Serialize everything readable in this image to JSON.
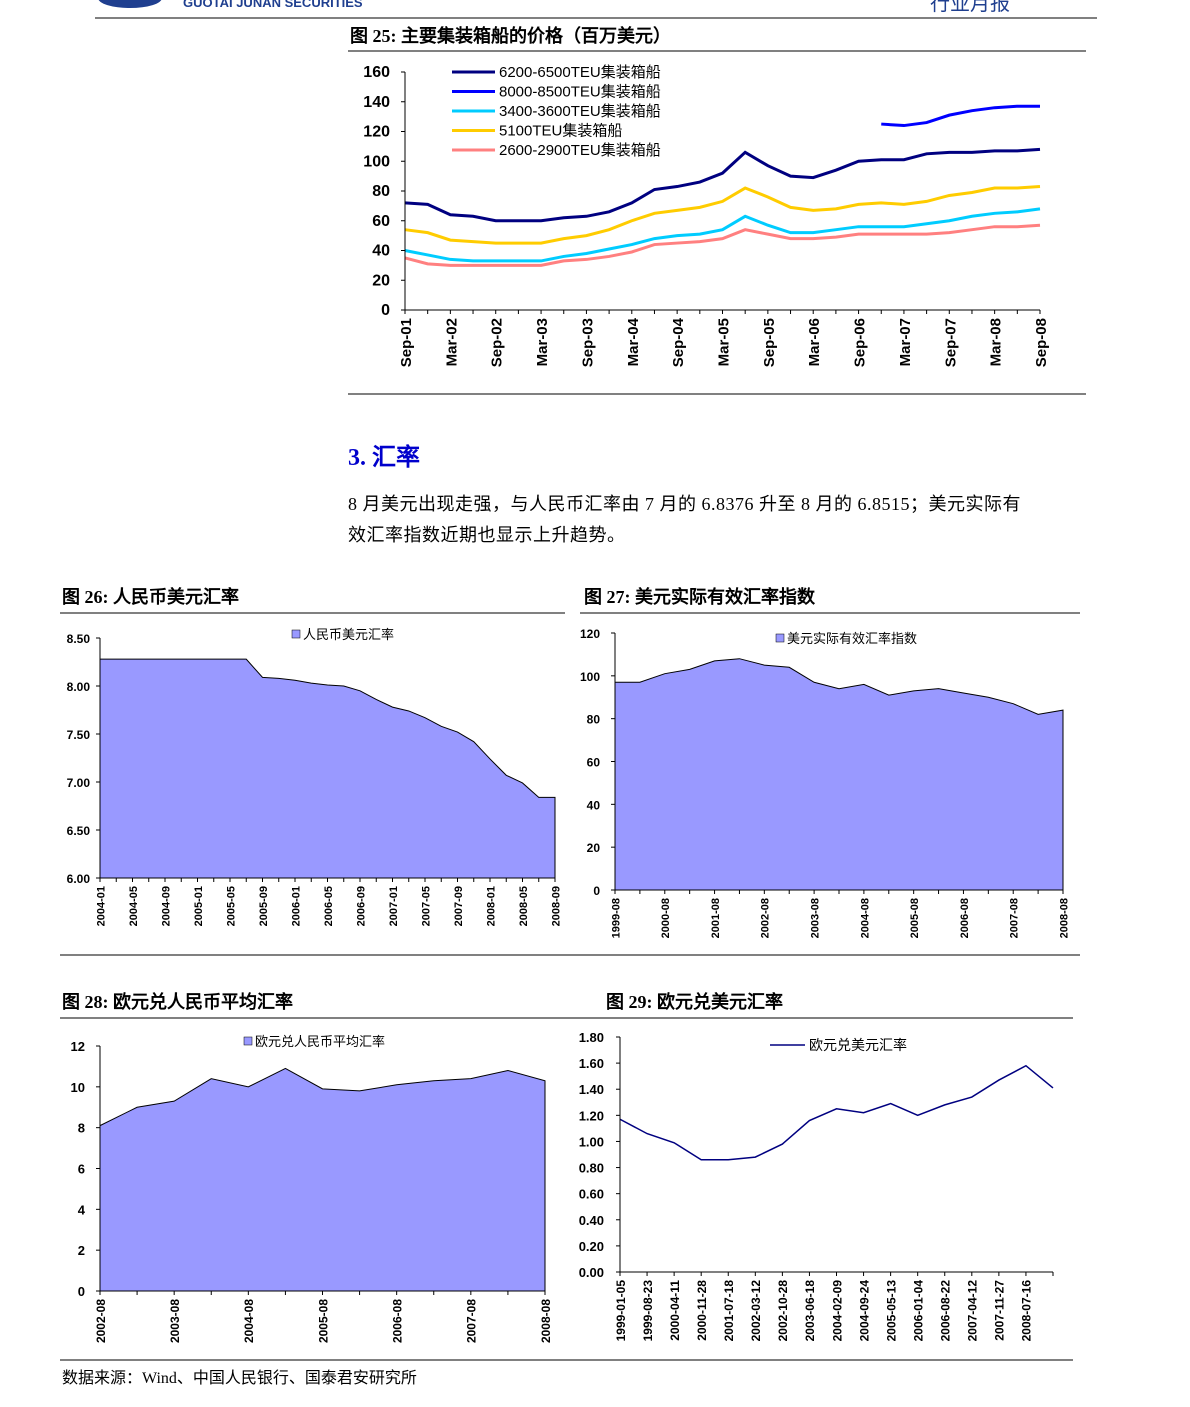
{
  "header": {
    "company": "GUOTAI JUNAN SECURITIES",
    "report": "行业月报"
  },
  "section": {
    "heading": "3.  汇率",
    "paragraph": [
      "8 月美元出现走强，与人民币汇率由 7 月的 6.8376 升至 8 月的 6.8515；美元实际有",
      "效汇率指数近期也显示上升趋势。"
    ]
  },
  "source": "数据来源：Wind、中国人民银行、国泰君安研究所",
  "chart_data": [
    {
      "type": "line",
      "title": "图 25:  主要集装箱船的价格（百万美元）",
      "categories": [
        "Sep-01",
        null,
        "Mar-02",
        null,
        "Sep-02",
        null,
        "Mar-03",
        null,
        "Sep-03",
        null,
        "Mar-04",
        null,
        "Sep-04",
        null,
        "Mar-05",
        null,
        "Sep-05",
        null,
        "Mar-06",
        null,
        "Sep-06",
        null,
        "Mar-07",
        null,
        "Sep-07",
        null,
        "Mar-08",
        null,
        "Sep-08"
      ],
      "ylim": [
        0,
        160
      ],
      "yticks": [
        0,
        20,
        40,
        60,
        80,
        100,
        120,
        140,
        160
      ],
      "series": [
        {
          "name": "6200-6500TEU集装箱船",
          "color": "#000080",
          "values": [
            72,
            71,
            64,
            63,
            60,
            60,
            60,
            62,
            63,
            66,
            72,
            81,
            83,
            86,
            92,
            106,
            97,
            90,
            89,
            94,
            100,
            101,
            101,
            105,
            106,
            106,
            107,
            107,
            108
          ]
        },
        {
          "name": "8000-8500TEU集装箱船",
          "color": "#0000ff",
          "values": [
            null,
            null,
            null,
            null,
            null,
            null,
            null,
            null,
            null,
            null,
            null,
            null,
            null,
            null,
            null,
            null,
            null,
            null,
            null,
            null,
            null,
            125,
            124,
            126,
            131,
            134,
            136,
            137,
            137
          ]
        },
        {
          "name": "3400-3600TEU集装箱船",
          "color": "#00ccff",
          "values": [
            40,
            37,
            34,
            33,
            33,
            33,
            33,
            36,
            38,
            41,
            44,
            48,
            50,
            51,
            54,
            63,
            57,
            52,
            52,
            54,
            56,
            56,
            56,
            58,
            60,
            63,
            65,
            66,
            68
          ]
        },
        {
          "name": "5100TEU集装箱船",
          "color": "#ffcc00",
          "values": [
            54,
            52,
            47,
            46,
            45,
            45,
            45,
            48,
            50,
            54,
            60,
            65,
            67,
            69,
            73,
            82,
            76,
            69,
            67,
            68,
            71,
            72,
            71,
            73,
            77,
            79,
            82,
            82,
            83
          ]
        },
        {
          "name": "2600-2900TEU集装箱船",
          "color": "#ff8080",
          "values": [
            35,
            31,
            30,
            30,
            30,
            30,
            30,
            33,
            34,
            36,
            39,
            44,
            45,
            46,
            48,
            54,
            51,
            48,
            48,
            49,
            51,
            51,
            51,
            51,
            52,
            54,
            56,
            56,
            57
          ]
        }
      ]
    },
    {
      "type": "area",
      "title": "图 26:  人民币美元汇率",
      "categories": [
        "2004-01",
        null,
        "2004-05",
        null,
        "2004-09",
        null,
        "2005-01",
        null,
        "2005-05",
        null,
        "2005-09",
        null,
        "2006-01",
        null,
        "2006-05",
        null,
        "2006-09",
        null,
        "2007-01",
        null,
        "2007-05",
        null,
        "2007-09",
        null,
        "2008-01",
        null,
        "2008-05",
        null,
        "2008-09"
      ],
      "ylim": [
        6,
        8.5
      ],
      "yticks": [
        {
          "value": 6,
          "label": "6.00"
        },
        {
          "value": 6.5,
          "label": "6.50"
        },
        {
          "value": 7,
          "label": "7.00"
        },
        {
          "value": 7.5,
          "label": "7.50"
        },
        {
          "value": 8,
          "label": "8.00"
        },
        {
          "value": 8.5,
          "label": "8.50"
        }
      ],
      "series": [
        {
          "name": "人民币美元汇率",
          "color": "#9999ff",
          "values": [
            8.28,
            8.28,
            8.28,
            8.28,
            8.28,
            8.28,
            8.28,
            8.28,
            8.28,
            8.28,
            8.09,
            8.08,
            8.06,
            8.03,
            8.01,
            8.0,
            7.95,
            7.86,
            7.78,
            7.74,
            7.67,
            7.58,
            7.52,
            7.42,
            7.24,
            7.07,
            6.99,
            6.84,
            6.84
          ]
        }
      ]
    },
    {
      "type": "area",
      "title": "图 27:  美元实际有效汇率指数",
      "categories": [
        "1999-08",
        null,
        "2000-08",
        null,
        "2001-08",
        null,
        "2002-08",
        null,
        "2003-08",
        null,
        "2004-08",
        null,
        "2005-08",
        null,
        "2006-08",
        null,
        "2007-08",
        null,
        "2008-08"
      ],
      "ylim": [
        0,
        120
      ],
      "yticks": [
        0,
        20,
        40,
        60,
        80,
        100,
        120
      ],
      "series": [
        {
          "name": "美元实际有效汇率指数",
          "color": "#9999ff",
          "values": [
            97,
            97,
            101,
            103,
            107,
            108,
            105,
            104,
            97,
            94,
            96,
            91,
            93,
            94,
            92,
            90,
            87,
            82,
            84
          ]
        }
      ]
    },
    {
      "type": "area",
      "title": "图 28:  欧元兑人民币平均汇率",
      "categories": [
        "2002-08",
        null,
        "2003-08",
        null,
        "2004-08",
        null,
        "2005-08",
        null,
        "2006-08",
        null,
        "2007-08",
        null,
        "2008-08"
      ],
      "ylim": [
        0,
        12
      ],
      "yticks": [
        0,
        2,
        4,
        6,
        8,
        10,
        12
      ],
      "series": [
        {
          "name": "欧元兑人民币平均汇率",
          "color": "#9999ff",
          "values": [
            8.1,
            9.0,
            9.3,
            10.4,
            10.0,
            10.9,
            9.9,
            9.8,
            10.1,
            10.3,
            10.4,
            10.8,
            10.3
          ]
        }
      ]
    },
    {
      "type": "line",
      "title": "图 29:  欧元兑美元汇率",
      "categories": [
        "1999-01-05",
        "1999-08-23",
        "2000-04-11",
        "2000-11-28",
        "2001-07-18",
        "2002-03-12",
        "2002-10-28",
        "2003-06-18",
        "2004-02-09",
        "2004-09-24",
        "2005-05-13",
        "2006-01-04",
        "2006-08-22",
        "2007-04-12",
        "2007-11-27",
        "2008-07-16",
        null
      ],
      "ylim": [
        0,
        1.8
      ],
      "yticks": [
        {
          "value": 0,
          "label": "0.00"
        },
        {
          "value": 0.2,
          "label": "0.20"
        },
        {
          "value": 0.4,
          "label": "0.40"
        },
        {
          "value": 0.6,
          "label": "0.60"
        },
        {
          "value": 0.8,
          "label": "0.80"
        },
        {
          "value": 1,
          "label": "1.00"
        },
        {
          "value": 1.2,
          "label": "1.20"
        },
        {
          "value": 1.4,
          "label": "1.40"
        },
        {
          "value": 1.6,
          "label": "1.60"
        },
        {
          "value": 1.8,
          "label": "1.80"
        }
      ],
      "series": [
        {
          "name": "欧元兑美元汇率",
          "color": "#000080",
          "values": [
            1.17,
            1.06,
            0.99,
            0.86,
            0.86,
            0.88,
            0.98,
            1.16,
            1.25,
            1.22,
            1.29,
            1.2,
            1.28,
            1.34,
            1.47,
            1.58,
            1.41
          ]
        }
      ]
    }
  ]
}
